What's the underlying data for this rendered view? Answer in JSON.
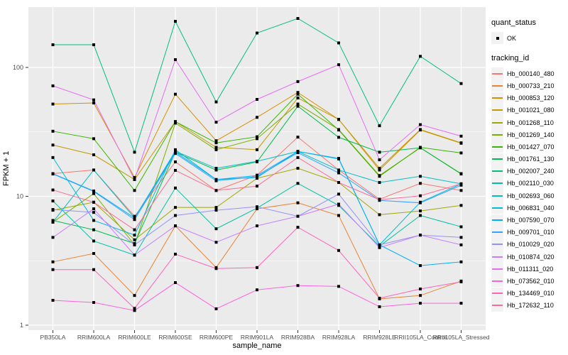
{
  "style": {
    "background": "#FFFFFF",
    "panel_bg": "#EBEBEB",
    "grid_color": "#FFFFFF",
    "tick_text_color": "#4D4D4D",
    "title_text_color": "#000000",
    "point_color": "#000000",
    "legend_key_bg": "#F2F2F2"
  },
  "chart_data": {
    "type": "line",
    "title": "",
    "xlabel": "sample_name",
    "ylabel": "FPKM + 1",
    "y_scale": "log10",
    "ylim": [
      1,
      295
    ],
    "grid": true,
    "legend_position": "right",
    "y_ticks": [
      {
        "value": 1,
        "label": "1"
      },
      {
        "value": 10,
        "label": "10"
      },
      {
        "value": 100,
        "label": "100"
      }
    ],
    "y_minor_gridlines": [
      3.1623,
      31.623
    ],
    "point_marker": "black-square",
    "x_categories": [
      "PB350LA",
      "RRIM600LA",
      "RRIM600LE",
      "RRIM600SE",
      "RRIM600PE",
      "RRIM901LA",
      "RRIM928BA",
      "RRIM928LA",
      "RRIM928LE",
      "RRII105LA_Control",
      "RRII105LA_Stressed"
    ],
    "legend": {
      "quant_status_title": "quant_status",
      "quant_status_items": [
        {
          "label": "OK",
          "symbol": "black-square-point"
        }
      ],
      "tracking_id_title": "tracking_id"
    },
    "series": [
      {
        "name": "Hb_000140_480",
        "color": "#F8766D",
        "values": [
          15,
          16,
          7.0,
          18.5,
          11.1,
          14.6,
          28.8,
          16.0,
          9.5,
          12.6,
          11.1
        ]
      },
      {
        "name": "Hb_000733_210",
        "color": "#EA8331",
        "values": [
          3.1,
          3.6,
          1.7,
          5.9,
          2.8,
          8.0,
          8.9,
          7.1,
          1.6,
          1.7,
          2.2
        ]
      },
      {
        "name": "Hb_000853_120",
        "color": "#D89000",
        "values": [
          52,
          53,
          14,
          62,
          27,
          41,
          64,
          39.5,
          16.5,
          33,
          26
        ]
      },
      {
        "name": "Hb_001021_080",
        "color": "#C09B00",
        "values": [
          25,
          21,
          13.5,
          38,
          24,
          23,
          58,
          39.5,
          16,
          32.7,
          25.8
        ]
      },
      {
        "name": "Hb_001268_110",
        "color": "#A3A500",
        "values": [
          7.8,
          9.0,
          4.6,
          8.2,
          8.2,
          13.8,
          16.5,
          12.8,
          7.2,
          7.7,
          8.5
        ]
      },
      {
        "name": "Hb_001269_140",
        "color": "#7CAE00",
        "values": [
          6.3,
          10.5,
          4.2,
          37,
          23,
          28,
          52,
          33,
          14.5,
          23.8,
          15
        ]
      },
      {
        "name": "Hb_001427_070",
        "color": "#39B600",
        "values": [
          32,
          28,
          11.1,
          38,
          26,
          29,
          62,
          32.7,
          14.3,
          24,
          21.7
        ]
      },
      {
        "name": "Hb_001761_130",
        "color": "#00BB4E",
        "values": [
          6.5,
          5.5,
          4.3,
          22,
          16,
          18.5,
          50,
          28.7,
          22,
          23.8,
          14.9
        ]
      },
      {
        "name": "Hb_002007_240",
        "color": "#00BF7D",
        "values": [
          150,
          150,
          22,
          228,
          54,
          185,
          240,
          155,
          35.3,
          122,
          75
        ]
      },
      {
        "name": "Hb_002110_030",
        "color": "#00C1A3",
        "values": [
          9.2,
          4.5,
          3.5,
          11.6,
          5.6,
          8.1,
          12.6,
          8.5,
          4.1,
          7.1,
          5.8
        ]
      },
      {
        "name": "Hb_002693_060",
        "color": "#00BFC4",
        "values": [
          6.3,
          16,
          6.8,
          22.4,
          16.5,
          18.7,
          22.3,
          16,
          12.8,
          14.3,
          12.5
        ]
      },
      {
        "name": "Hb_006831_040",
        "color": "#00BAE0",
        "values": [
          20,
          6.5,
          5.0,
          23,
          13.5,
          14,
          22.3,
          19.5,
          4.2,
          9.0,
          12.5
        ]
      },
      {
        "name": "Hb_007590_070",
        "color": "#00B0F6",
        "values": [
          15,
          11,
          6.8,
          22,
          13.5,
          14.5,
          22.3,
          19.7,
          4.2,
          2.9,
          3.1
        ]
      },
      {
        "name": "Hb_009701_010",
        "color": "#35A2FF",
        "values": [
          14.9,
          10.9,
          6.6,
          21.5,
          13.2,
          14.2,
          21.8,
          15.2,
          9.3,
          8.9,
          12.2
        ]
      },
      {
        "name": "Hb_010029_020",
        "color": "#9590FF",
        "values": [
          7.9,
          7.5,
          4.2,
          7.1,
          7.8,
          8.3,
          7.0,
          10.4,
          4.2,
          5.0,
          4.8
        ]
      },
      {
        "name": "Hb_010874_020",
        "color": "#C77CFF",
        "values": [
          4.8,
          8.0,
          3.5,
          5.9,
          4.4,
          5.9,
          7.0,
          8.7,
          4.0,
          5.0,
          4.2
        ]
      },
      {
        "name": "Hb_011311_020",
        "color": "#E76BF3",
        "values": [
          72,
          56,
          13.5,
          115,
          37.6,
          56.5,
          77.7,
          105,
          19.2,
          36,
          29.3
        ]
      },
      {
        "name": "Hb_073562_010",
        "color": "#FA62DB",
        "values": [
          1.56,
          1.5,
          1.3,
          2.14,
          1.34,
          1.88,
          2.03,
          2.0,
          1.39,
          1.48,
          1.48
        ]
      },
      {
        "name": "Hb_134469_010",
        "color": "#FF62BC",
        "values": [
          2.7,
          2.7,
          1.35,
          3.56,
          2.75,
          2.8,
          5.75,
          3.8,
          1.62,
          1.91,
          2.17
        ]
      },
      {
        "name": "Hb_172632_110",
        "color": "#FF6A98",
        "values": [
          11.2,
          9.0,
          5.5,
          15.9,
          11.1,
          12,
          20,
          12.8,
          9.4,
          10.1,
          12.5
        ]
      }
    ]
  }
}
